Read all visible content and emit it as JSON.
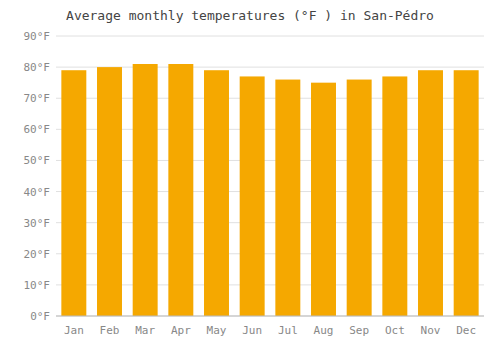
{
  "chart_data": {
    "type": "bar",
    "title": "Average monthly temperatures (°F ) in San-Pédro",
    "categories": [
      "Jan",
      "Feb",
      "Mar",
      "Apr",
      "May",
      "Jun",
      "Jul",
      "Aug",
      "Sep",
      "Oct",
      "Nov",
      "Dec"
    ],
    "values": [
      79,
      80,
      81,
      81,
      79,
      77,
      76,
      75,
      76,
      77,
      79,
      79
    ],
    "color": "#F5A800",
    "ylim": [
      0,
      90
    ],
    "yticks": [
      {
        "value": 0,
        "label": "0°F"
      },
      {
        "value": 10,
        "label": "10°F"
      },
      {
        "value": 20,
        "label": "20°F"
      },
      {
        "value": 30,
        "label": "30°F"
      },
      {
        "value": 40,
        "label": "40°F"
      },
      {
        "value": 50,
        "label": "50°F"
      },
      {
        "value": 60,
        "label": "60°F"
      },
      {
        "value": 70,
        "label": "70°F"
      },
      {
        "value": 80,
        "label": "80°F"
      },
      {
        "value": 90,
        "label": "90°F"
      }
    ],
    "grid": true
  }
}
